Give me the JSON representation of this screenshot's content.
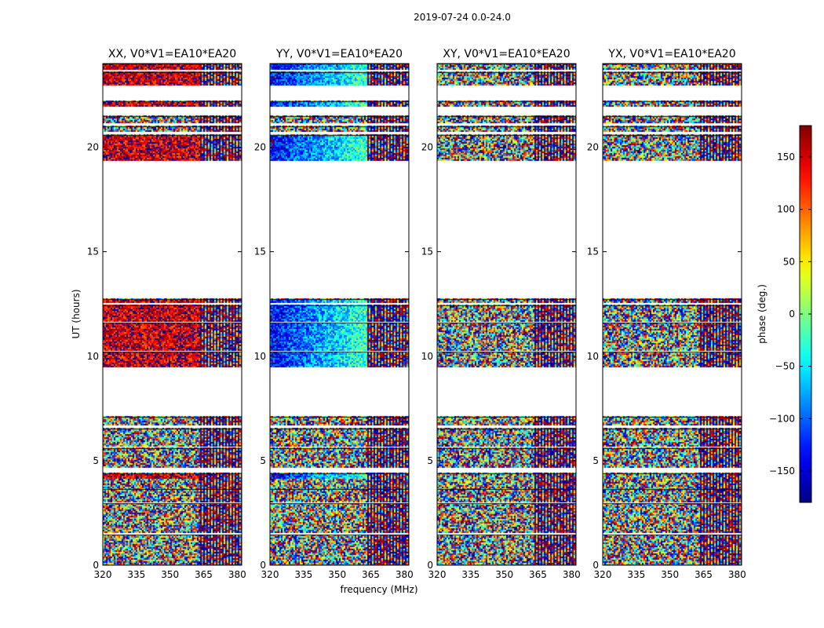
{
  "figure_title": "2019-07-24 0.0-24.0",
  "chart_data": {
    "type": "heatmap",
    "title": "2019-07-24 0.0-24.0",
    "xlabel": "frequency (MHz)",
    "ylabel": "UT (hours)",
    "xlim": [
      320,
      382
    ],
    "ylim": [
      0,
      24
    ],
    "x_ticks": [
      320,
      335,
      350,
      365,
      380
    ],
    "y_ticks": [
      0,
      5,
      10,
      15,
      20
    ],
    "rfi_boundary_mhz": 363,
    "colorbar": {
      "label": "phase (deg.)",
      "range": [
        -180,
        180
      ],
      "ticks": [
        150,
        100,
        50,
        0,
        -50,
        -100,
        -150
      ],
      "tick_labels": [
        "150",
        "100",
        "50",
        "0",
        "−50",
        "−100",
        "−150"
      ],
      "colormap": "jet",
      "colors": [
        "#00007f",
        "#0000ff",
        "#007fff",
        "#00ffff",
        "#7fff7f",
        "#ffff00",
        "#ff7f00",
        "#ff0000",
        "#7f0000"
      ]
    },
    "data_time_ranges": [
      [
        0.0,
        1.45
      ],
      [
        1.55,
        2.95
      ],
      [
        3.05,
        3.65
      ],
      [
        3.75,
        4.2
      ],
      [
        4.2,
        4.4
      ],
      [
        4.7,
        5.6
      ],
      [
        5.72,
        6.55
      ],
      [
        6.7,
        7.1
      ],
      [
        9.5,
        10.2
      ],
      [
        10.3,
        11.6
      ],
      [
        11.7,
        12.45
      ],
      [
        12.55,
        12.75
      ],
      [
        19.4,
        20.6
      ],
      [
        20.75,
        21.0
      ],
      [
        21.2,
        21.5
      ],
      [
        22.0,
        22.2
      ],
      [
        23.0,
        23.6
      ],
      [
        23.7,
        24.0
      ]
    ],
    "panels": [
      {
        "title": "XX, V0*V1=EA10*EA20",
        "description": "coherent phase near +150 deg",
        "coherent": true,
        "mean_phase_low_freq": 150,
        "mean_phase_high_freq": 150,
        "coherent_time_ranges": [
          [
            4.2,
            4.4
          ],
          [
            9.5,
            12.75
          ],
          [
            19.4,
            20.6
          ],
          [
            22.0,
            22.2
          ],
          [
            23.0,
            24.0
          ]
        ]
      },
      {
        "title": "YY, V0*V1=EA10*EA20",
        "description": "coherent phase drifting from about -130 deg to -20 deg with frequency",
        "coherent": true,
        "mean_phase_low_freq": -135,
        "mean_phase_high_freq": -20,
        "coherent_time_ranges": [
          [
            4.2,
            4.4
          ],
          [
            9.5,
            12.75
          ],
          [
            19.4,
            20.6
          ],
          [
            22.0,
            22.2
          ],
          [
            23.0,
            24.0
          ]
        ]
      },
      {
        "title": "XY, V0*V1=EA10*EA20",
        "description": "incoherent (noise-like) phase",
        "coherent": false,
        "coherent_time_ranges": []
      },
      {
        "title": "YX, V0*V1=EA10*EA20",
        "description": "incoherent (noise-like) phase",
        "coherent": false,
        "coherent_time_ranges": []
      }
    ]
  }
}
